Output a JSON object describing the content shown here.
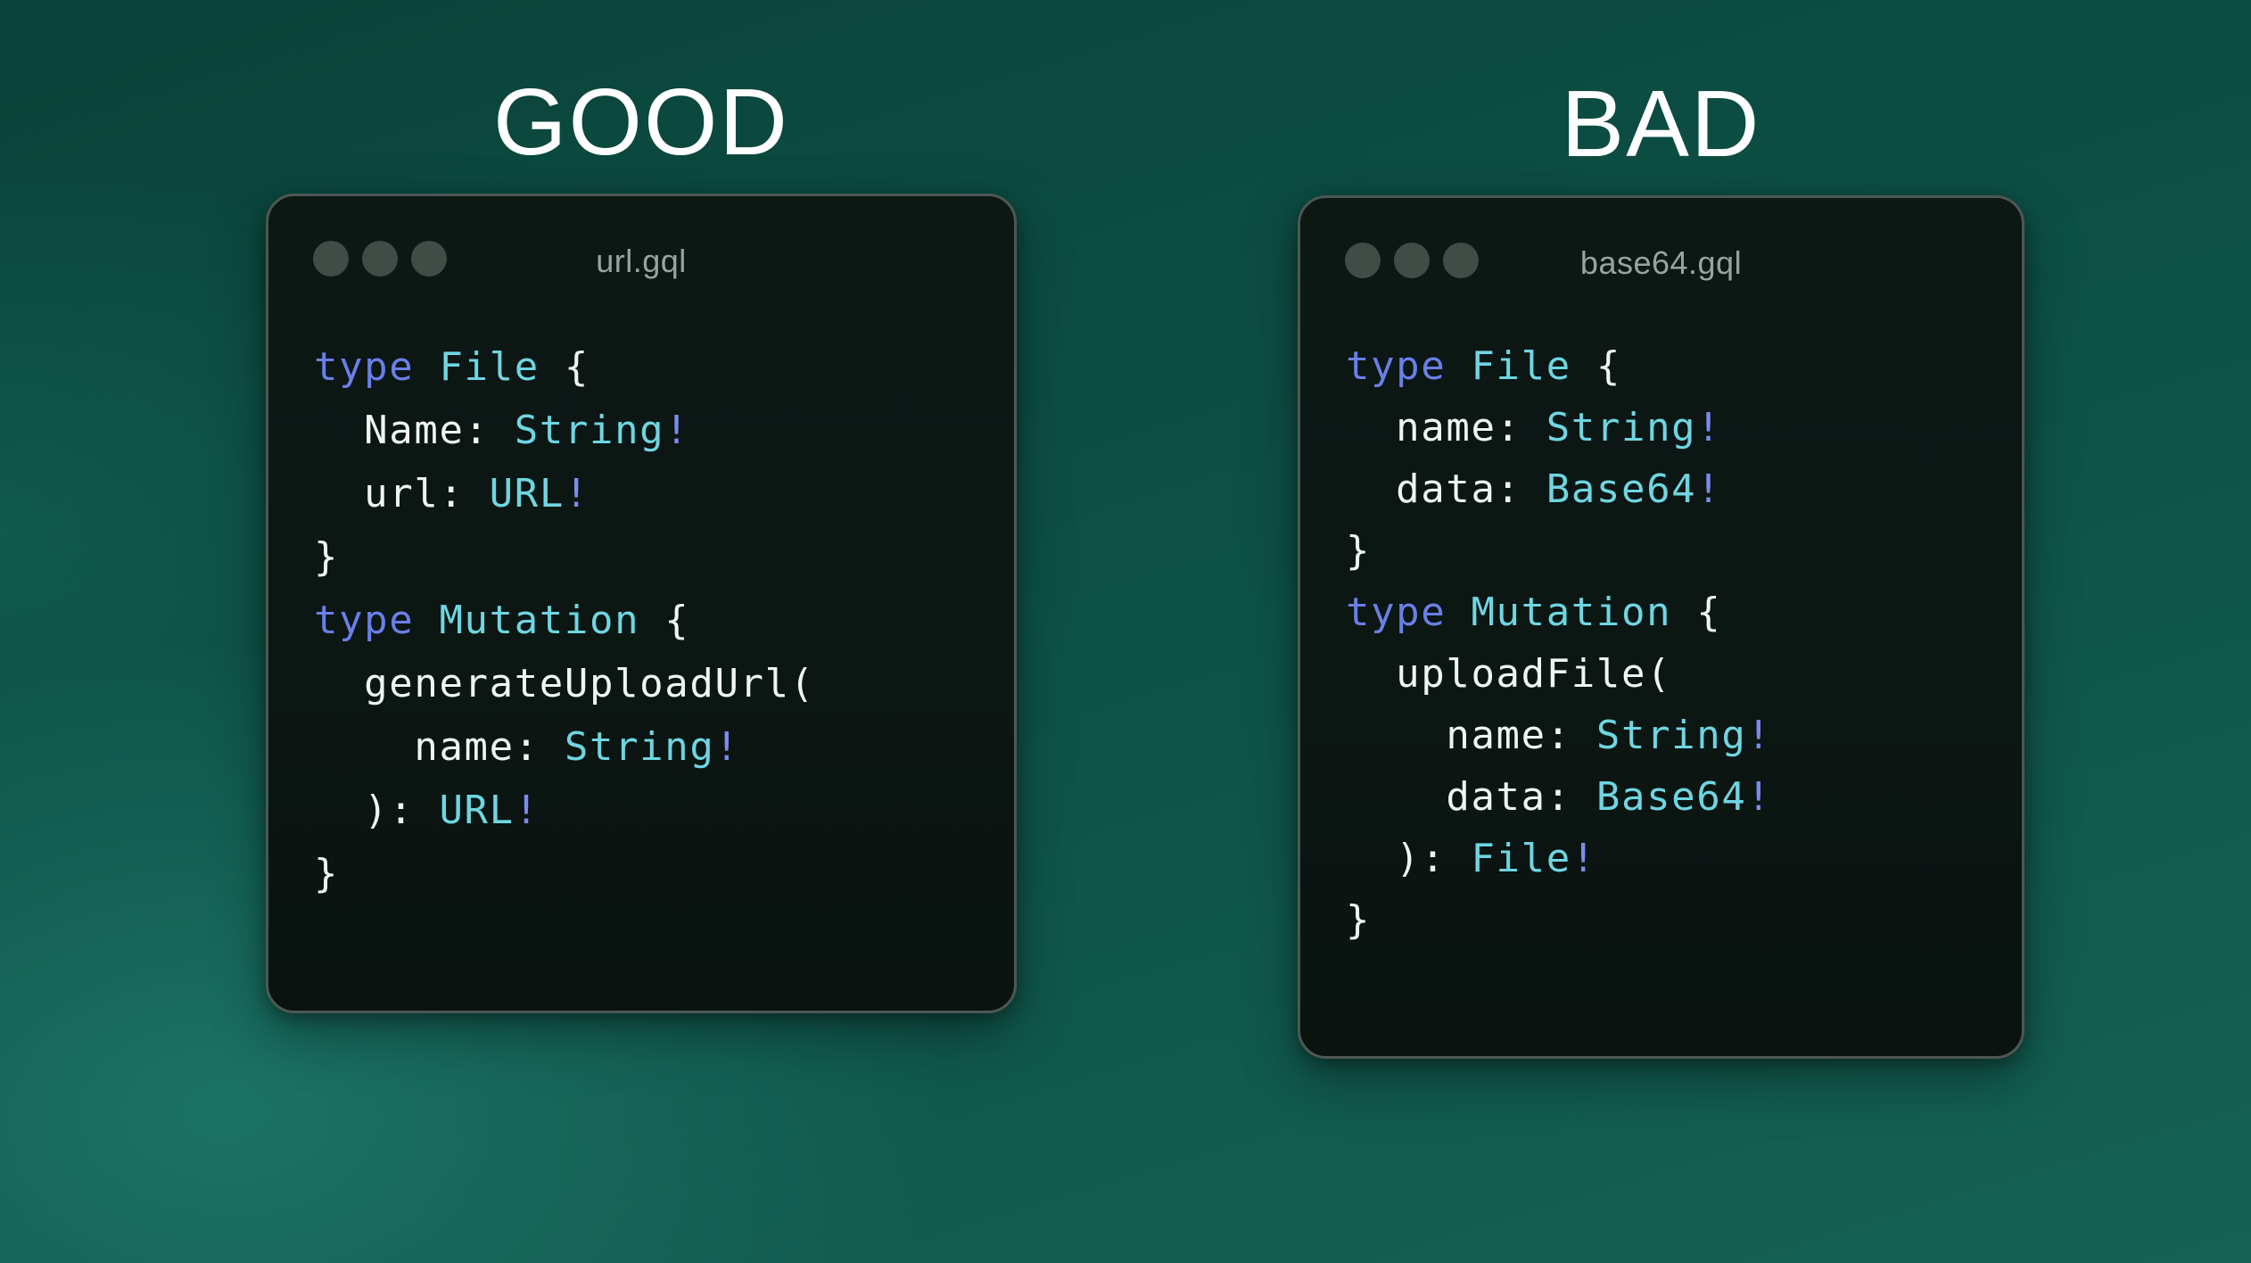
{
  "titles": {
    "left": "GOOD",
    "right": "BAD"
  },
  "colors": {
    "background_top": "#0a4339",
    "background_mid": "#0e5247",
    "background_bottom": "#156254",
    "background_glow": "#1b7365",
    "heading_text": "#ffffff",
    "window_background": "#0c1613",
    "window_border": "#4d5754",
    "window_control_dot": "#414c47",
    "filename_text": "#99a3a0",
    "keyword": "#6880e8",
    "type": "#6ed6e2",
    "bang": "#7a8cee",
    "plain": "#f0f4f3"
  },
  "left_window": {
    "filename": "url.gql",
    "code": [
      [
        {
          "t": "type",
          "c": "keyword"
        },
        {
          "t": " ",
          "c": "plain"
        },
        {
          "t": "File",
          "c": "type"
        },
        {
          "t": " {",
          "c": "plain"
        }
      ],
      [
        {
          "t": "  Name: ",
          "c": "plain"
        },
        {
          "t": "String",
          "c": "type"
        },
        {
          "t": "!",
          "c": "bang"
        }
      ],
      [
        {
          "t": "  url: ",
          "c": "plain"
        },
        {
          "t": "URL",
          "c": "type"
        },
        {
          "t": "!",
          "c": "bang"
        }
      ],
      [
        {
          "t": "}",
          "c": "plain"
        }
      ],
      [
        {
          "t": "type",
          "c": "keyword"
        },
        {
          "t": " ",
          "c": "plain"
        },
        {
          "t": "Mutation",
          "c": "type"
        },
        {
          "t": " {",
          "c": "plain"
        }
      ],
      [
        {
          "t": "  generateUploadUrl(",
          "c": "plain"
        }
      ],
      [
        {
          "t": "    name: ",
          "c": "plain"
        },
        {
          "t": "String",
          "c": "type"
        },
        {
          "t": "!",
          "c": "bang"
        }
      ],
      [
        {
          "t": "  ): ",
          "c": "plain"
        },
        {
          "t": "URL",
          "c": "type"
        },
        {
          "t": "!",
          "c": "bang"
        }
      ],
      [
        {
          "t": "}",
          "c": "plain"
        }
      ]
    ]
  },
  "right_window": {
    "filename": "base64.gql",
    "code": [
      [
        {
          "t": "type",
          "c": "keyword"
        },
        {
          "t": " ",
          "c": "plain"
        },
        {
          "t": "File",
          "c": "type"
        },
        {
          "t": " {",
          "c": "plain"
        }
      ],
      [
        {
          "t": "  name: ",
          "c": "plain"
        },
        {
          "t": "String",
          "c": "type"
        },
        {
          "t": "!",
          "c": "bang"
        }
      ],
      [
        {
          "t": "  data: ",
          "c": "plain"
        },
        {
          "t": "Base64",
          "c": "type"
        },
        {
          "t": "!",
          "c": "bang"
        }
      ],
      [
        {
          "t": "}",
          "c": "plain"
        }
      ],
      [
        {
          "t": "type",
          "c": "keyword"
        },
        {
          "t": " ",
          "c": "plain"
        },
        {
          "t": "Mutation",
          "c": "type"
        },
        {
          "t": " {",
          "c": "plain"
        }
      ],
      [
        {
          "t": "  uploadFile(",
          "c": "plain"
        }
      ],
      [
        {
          "t": "    name: ",
          "c": "plain"
        },
        {
          "t": "String",
          "c": "type"
        },
        {
          "t": "!",
          "c": "bang"
        }
      ],
      [
        {
          "t": "    data: ",
          "c": "plain"
        },
        {
          "t": "Base64",
          "c": "type"
        },
        {
          "t": "!",
          "c": "bang"
        }
      ],
      [
        {
          "t": "  ): ",
          "c": "plain"
        },
        {
          "t": "File",
          "c": "type"
        },
        {
          "t": "!",
          "c": "bang"
        }
      ],
      [
        {
          "t": "}",
          "c": "plain"
        }
      ]
    ]
  }
}
